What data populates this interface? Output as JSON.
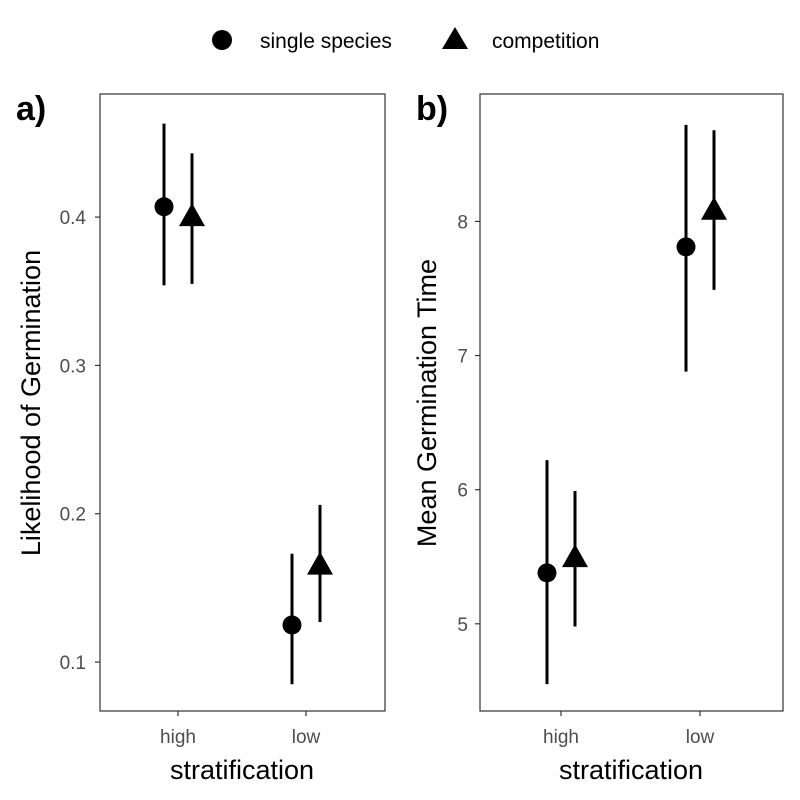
{
  "legend": {
    "entries": [
      {
        "label": "single species",
        "shape": "circle"
      },
      {
        "label": "competition",
        "shape": "triangle"
      }
    ]
  },
  "colors": {
    "marks": "#000000",
    "panel_border": "#333333",
    "tick_text": "#4d4d4d"
  },
  "chart_data": [
    {
      "type": "scatter",
      "panel_label": "a)",
      "xlabel": "stratification",
      "ylabel": "Likelihood of Germination",
      "categories": [
        "high",
        "low"
      ],
      "ylim": [
        0.067,
        0.483
      ],
      "yticks": [
        0.1,
        0.2,
        0.3,
        0.4
      ],
      "ytick_labels": [
        "0.1",
        "0.2",
        "0.3",
        "0.4"
      ],
      "grid": false,
      "legend_position": "top",
      "series": [
        {
          "name": "single species",
          "shape": "circle",
          "values": [
            0.407,
            0.125
          ],
          "lower": [
            0.354,
            0.085
          ],
          "upper": [
            0.463,
            0.173
          ]
        },
        {
          "name": "competition",
          "shape": "triangle",
          "values": [
            0.4,
            0.165
          ],
          "lower": [
            0.355,
            0.127
          ],
          "upper": [
            0.443,
            0.206
          ]
        }
      ]
    },
    {
      "type": "scatter",
      "panel_label": "b)",
      "xlabel": "stratification",
      "ylabel": "Mean Germination Time",
      "categories": [
        "high",
        "low"
      ],
      "ylim": [
        4.35,
        8.95
      ],
      "yticks": [
        5,
        6,
        7,
        8
      ],
      "ytick_labels": [
        "5",
        "6",
        "7",
        "8"
      ],
      "grid": false,
      "legend_position": "top",
      "series": [
        {
          "name": "single species",
          "shape": "circle",
          "values": [
            5.38,
            7.81
          ],
          "lower": [
            4.55,
            6.88
          ],
          "upper": [
            6.22,
            8.72
          ]
        },
        {
          "name": "competition",
          "shape": "triangle",
          "values": [
            5.49,
            8.08
          ],
          "lower": [
            4.98,
            7.49
          ],
          "upper": [
            5.99,
            8.68
          ]
        }
      ]
    }
  ]
}
